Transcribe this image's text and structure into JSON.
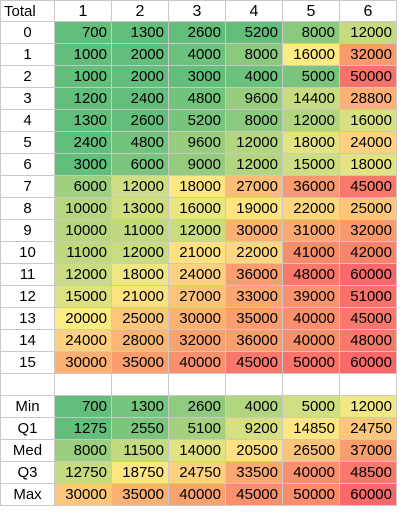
{
  "header": {
    "corner": "Total",
    "columns": [
      "1",
      "2",
      "3",
      "4",
      "5",
      "6"
    ]
  },
  "rows": [
    {
      "label": "0",
      "values": [
        "700",
        "1300",
        "2600",
        "5200",
        "8000",
        "12000"
      ],
      "colors": [
        "#63be7b",
        "#63be7b",
        "#63be7b",
        "#63be7b",
        "#8bc97e",
        "#c5da81"
      ]
    },
    {
      "label": "1",
      "values": [
        "1000",
        "2000",
        "4000",
        "8000",
        "16000",
        "32000"
      ],
      "colors": [
        "#63be7b",
        "#63be7b",
        "#6cc17c",
        "#8bc97e",
        "#ffeb84",
        "#f99a6e"
      ]
    },
    {
      "label": "2",
      "values": [
        "1000",
        "2000",
        "3000",
        "4000",
        "5000",
        "50000"
      ],
      "colors": [
        "#63be7b",
        "#63be7b",
        "#63be7b",
        "#6cc17c",
        "#7ac47d",
        "#f8716b"
      ]
    },
    {
      "label": "3",
      "values": [
        "1200",
        "2400",
        "4800",
        "9600",
        "14400",
        "28800"
      ],
      "colors": [
        "#63be7b",
        "#63be7b",
        "#72c37c",
        "#98cd7e",
        "#c9dc81",
        "#fbb074"
      ]
    },
    {
      "label": "4",
      "values": [
        "1300",
        "2600",
        "5200",
        "8000",
        "12000",
        "16000"
      ],
      "colors": [
        "#63be7b",
        "#63be7b",
        "#77c47d",
        "#8bc97e",
        "#b2d580",
        "#d9e082"
      ]
    },
    {
      "label": "5",
      "values": [
        "2400",
        "4800",
        "9600",
        "12000",
        "18000",
        "24000"
      ],
      "colors": [
        "#63be7b",
        "#72c37c",
        "#98cd7e",
        "#b2d580",
        "#e3e383",
        "#fdd17f"
      ]
    },
    {
      "label": "6",
      "values": [
        "3000",
        "6000",
        "9000",
        "12000",
        "15000",
        "18000"
      ],
      "colors": [
        "#63be7b",
        "#7ac47d",
        "#94cc7e",
        "#b2d580",
        "#cfde82",
        "#e3e383"
      ]
    },
    {
      "label": "7",
      "values": [
        "6000",
        "12000",
        "18000",
        "27000",
        "36000",
        "45000"
      ],
      "colors": [
        "#9fcf7f",
        "#cfde82",
        "#fee783",
        "#fcbd78",
        "#f99a6e",
        "#f8796c"
      ]
    },
    {
      "label": "8",
      "values": [
        "10000",
        "13000",
        "16000",
        "19000",
        "22000",
        "25000"
      ],
      "colors": [
        "#b8d680",
        "#d0de82",
        "#e8e583",
        "#fde481",
        "#fdd680",
        "#fcc67b"
      ]
    },
    {
      "label": "9",
      "values": [
        "10000",
        "11000",
        "12000",
        "30000",
        "31000",
        "32000"
      ],
      "colors": [
        "#b8d680",
        "#c0d981",
        "#c9dc81",
        "#fbb074",
        "#faa872",
        "#f99a6e"
      ]
    },
    {
      "label": "10",
      "values": [
        "11000",
        "12000",
        "21000",
        "22000",
        "41000",
        "42000"
      ],
      "colors": [
        "#c0d981",
        "#c9dc81",
        "#fee281",
        "#fdd680",
        "#f88d6c",
        "#f8846b"
      ]
    },
    {
      "label": "11",
      "values": [
        "12000",
        "18000",
        "24000",
        "36000",
        "48000",
        "60000"
      ],
      "colors": [
        "#c9dc81",
        "#f0e784",
        "#fdd17f",
        "#fa9e70",
        "#f8796c",
        "#f8696b"
      ]
    },
    {
      "label": "12",
      "values": [
        "15000",
        "21000",
        "27000",
        "33000",
        "39000",
        "51000"
      ],
      "colors": [
        "#dde182",
        "#fee281",
        "#fcc47a",
        "#faa872",
        "#f9936d",
        "#f8716b"
      ]
    },
    {
      "label": "13",
      "values": [
        "20000",
        "25000",
        "30000",
        "35000",
        "40000",
        "45000"
      ],
      "colors": [
        "#fdeb84",
        "#fcc67b",
        "#fbb074",
        "#fa9e70",
        "#f9906d",
        "#f8796c"
      ]
    },
    {
      "label": "14",
      "values": [
        "24000",
        "28000",
        "32000",
        "36000",
        "40000",
        "48000"
      ],
      "colors": [
        "#fdd17f",
        "#fbb676",
        "#f9a271",
        "#fa9e70",
        "#f9906d",
        "#f8796c"
      ]
    },
    {
      "label": "15",
      "values": [
        "30000",
        "35000",
        "40000",
        "45000",
        "50000",
        "60000"
      ],
      "colors": [
        "#fbb074",
        "#fa9e70",
        "#f9906d",
        "#f8796c",
        "#f8746b",
        "#f8696b"
      ]
    }
  ],
  "stats": [
    {
      "label": "Min",
      "values": [
        "700",
        "1300",
        "2600",
        "4000",
        "5000",
        "12000"
      ],
      "colors": [
        "#63be7b",
        "#77c47d",
        "#8fca7e",
        "#b2d580",
        "#d1df82",
        "#f1e784"
      ]
    },
    {
      "label": "Q1",
      "values": [
        "1275",
        "2550",
        "5100",
        "9200",
        "14850",
        "24750"
      ],
      "colors": [
        "#63be7b",
        "#7cc57d",
        "#a5d17f",
        "#d6e082",
        "#fee783",
        "#fcc67b"
      ]
    },
    {
      "label": "Med",
      "values": [
        "8000",
        "11500",
        "14000",
        "20500",
        "26500",
        "37000"
      ],
      "colors": [
        "#9bce7f",
        "#c4da81",
        "#e0e283",
        "#fde081",
        "#fcc47a",
        "#fa9e70"
      ]
    },
    {
      "label": "Q3",
      "values": [
        "12750",
        "18750",
        "24750",
        "33500",
        "40000",
        "48500"
      ],
      "colors": [
        "#c7db81",
        "#fee783",
        "#fdd17f",
        "#faa872",
        "#f9906d",
        "#f8796c"
      ]
    },
    {
      "label": "Max",
      "values": [
        "30000",
        "35000",
        "40000",
        "45000",
        "50000",
        "60000"
      ],
      "colors": [
        "#fcc67b",
        "#fbb074",
        "#f9a271",
        "#f9906d",
        "#f88d6c",
        "#f8696b"
      ]
    }
  ]
}
